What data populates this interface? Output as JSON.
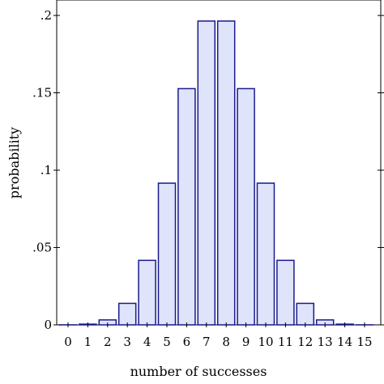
{
  "chart_data": {
    "type": "bar",
    "categories": [
      "0",
      "1",
      "2",
      "3",
      "4",
      "5",
      "6",
      "7",
      "8",
      "9",
      "10",
      "11",
      "12",
      "13",
      "14",
      "15"
    ],
    "values": [
      3.1e-05,
      0.00047,
      0.0032,
      0.0139,
      0.0417,
      0.0916,
      0.1527,
      0.1964,
      0.1964,
      0.1527,
      0.0916,
      0.0417,
      0.0139,
      0.0032,
      0.00047,
      3.1e-05
    ],
    "xlabel": "number of successes",
    "ylabel": "probability",
    "ylim": [
      0,
      0.21
    ],
    "yticks": [
      {
        "value": 0,
        "label": "0"
      },
      {
        "value": 0.05,
        "label": ".05"
      },
      {
        "value": 0.1,
        "label": ".1"
      },
      {
        "value": 0.15,
        "label": ".15"
      },
      {
        "value": 0.2,
        "label": ".2"
      }
    ],
    "grid": false,
    "colors": {
      "bar_fill": "#e0e4fb",
      "bar_stroke": "#1a1a8c"
    }
  }
}
